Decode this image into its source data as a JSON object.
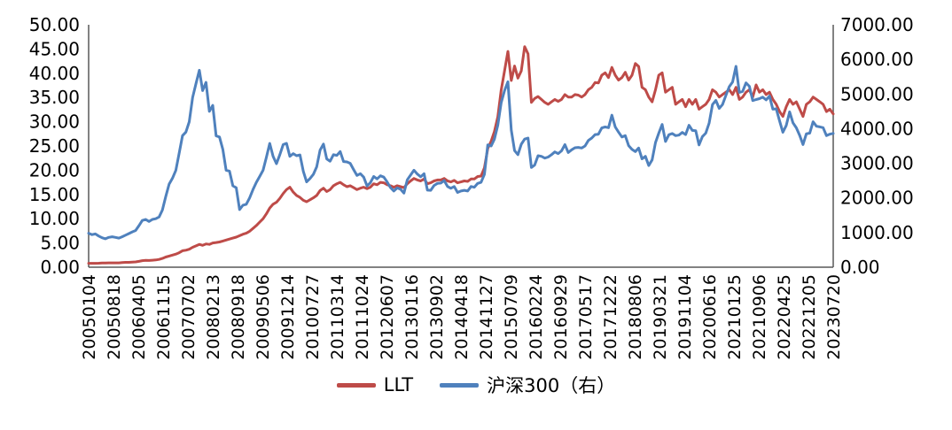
{
  "chart_data": {
    "type": "line",
    "title": "",
    "grid": false,
    "legend_position": "bottom",
    "axis_color": "#595959",
    "x_frequency": "monthly",
    "x_start": "2005-01",
    "x_end": "2023-07",
    "x_tick_labels": [
      "20050104",
      "20050818",
      "20060405",
      "20061115",
      "20070702",
      "20080213",
      "20080918",
      "20090506",
      "20091214",
      "20100727",
      "20110314",
      "20111024",
      "20120607",
      "20130116",
      "20130902",
      "20140418",
      "20141127",
      "20150709",
      "20160224",
      "20160929",
      "20170517",
      "20171222",
      "20180806",
      "20190321",
      "20191104",
      "20200616",
      "20210125",
      "20210906",
      "20220425",
      "20221205",
      "20230720"
    ],
    "left_axis": {
      "min": 0,
      "max": 50,
      "step": 5,
      "tick_labels": [
        "0.00",
        "5.00",
        "10.00",
        "15.00",
        "20.00",
        "25.00",
        "30.00",
        "35.00",
        "40.00",
        "45.00",
        "50.00"
      ]
    },
    "right_axis": {
      "min": 0,
      "max": 7000,
      "step": 1000,
      "tick_labels": [
        "0.00",
        "1000.00",
        "2000.00",
        "3000.00",
        "4000.00",
        "5000.00",
        "6000.00",
        "7000.00"
      ]
    },
    "series": [
      {
        "name": "LLT",
        "axis": "left",
        "color": "#be4b48",
        "values": [
          0.8,
          0.8,
          0.8,
          0.82,
          0.85,
          0.85,
          0.9,
          0.9,
          0.9,
          0.9,
          0.95,
          1.0,
          1.0,
          1.05,
          1.1,
          1.2,
          1.35,
          1.4,
          1.38,
          1.45,
          1.5,
          1.6,
          1.8,
          2.1,
          2.3,
          2.5,
          2.7,
          3.0,
          3.4,
          3.5,
          3.7,
          4.1,
          4.4,
          4.7,
          4.5,
          4.8,
          4.7,
          5.0,
          5.1,
          5.2,
          5.4,
          5.6,
          5.8,
          6.0,
          6.2,
          6.5,
          6.8,
          7.0,
          7.4,
          8.0,
          8.6,
          9.3,
          10.0,
          11.0,
          12.2,
          13.0,
          13.4,
          14.2,
          15.2,
          16.0,
          16.5,
          15.5,
          14.8,
          14.4,
          13.8,
          13.5,
          13.9,
          14.3,
          14.8,
          15.8,
          16.3,
          15.6,
          16.0,
          16.8,
          17.2,
          17.5,
          17.0,
          16.6,
          16.8,
          16.4,
          16.0,
          16.3,
          16.5,
          16.2,
          16.5,
          17.2,
          17.0,
          17.5,
          17.4,
          17.0,
          16.8,
          16.5,
          16.8,
          16.6,
          16.4,
          17.2,
          17.8,
          18.3,
          18.0,
          17.8,
          18.2,
          17.2,
          17.4,
          17.8,
          18.0,
          18.0,
          18.3,
          17.8,
          17.6,
          17.9,
          17.4,
          17.6,
          17.8,
          17.7,
          18.2,
          18.2,
          18.7,
          18.8,
          20.5,
          24.5,
          26.0,
          28.0,
          31.0,
          36.5,
          40.5,
          44.5,
          38.5,
          41.5,
          39.0,
          40.5,
          45.5,
          44.0,
          34.0,
          34.8,
          35.2,
          34.6,
          34.0,
          33.6,
          34.1,
          34.6,
          34.2,
          34.6,
          35.6,
          35.1,
          35.1,
          35.6,
          35.5,
          35.1,
          35.6,
          36.6,
          37.1,
          38.1,
          38.0,
          39.6,
          40.1,
          39.1,
          41.2,
          39.6,
          38.6,
          39.1,
          40.2,
          38.6,
          39.6,
          42.0,
          41.4,
          37.1,
          36.6,
          35.1,
          34.1,
          36.6,
          39.6,
          40.1,
          36.1,
          36.6,
          37.1,
          33.6,
          34.1,
          34.6,
          33.1,
          34.6,
          33.6,
          34.6,
          32.6,
          33.1,
          33.6,
          34.6,
          36.6,
          36.1,
          35.1,
          35.6,
          36.1,
          36.6,
          35.6,
          37.1,
          34.6,
          35.1,
          36.1,
          36.6,
          35.1,
          37.6,
          36.1,
          36.6,
          35.6,
          36.1,
          34.6,
          33.6,
          32.1,
          31.1,
          33.1,
          34.6,
          33.6,
          34.1,
          32.6,
          31.1,
          33.6,
          34.1,
          35.1,
          34.6,
          34.1,
          33.6,
          32.1,
          32.6,
          31.6
        ]
      },
      {
        "name": "沪深300（右）",
        "axis": "right",
        "color": "#4f81bd",
        "values": [
          982,
          940,
          960,
          900,
          850,
          820,
          860,
          880,
          860,
          840,
          880,
          924,
          970,
          1020,
          1060,
          1200,
          1350,
          1380,
          1320,
          1380,
          1400,
          1450,
          1650,
          2041,
          2400,
          2570,
          2800,
          3300,
          3800,
          3900,
          4200,
          4900,
          5300,
          5688,
          5100,
          5338,
          4500,
          4672,
          3790,
          3761,
          3400,
          2800,
          2775,
          2350,
          2294,
          1663,
          1790,
          1817,
          2000,
          2240,
          2450,
          2620,
          2800,
          3170,
          3573,
          3200,
          2990,
          3250,
          3540,
          3576,
          3200,
          3280,
          3220,
          3242,
          2768,
          2462,
          2560,
          2680,
          2900,
          3380,
          3557,
          3128,
          3060,
          3250,
          3230,
          3340,
          3050,
          3040,
          3000,
          2820,
          2650,
          2700,
          2600,
          2346,
          2440,
          2620,
          2550,
          2640,
          2600,
          2460,
          2300,
          2200,
          2290,
          2250,
          2140,
          2523,
          2660,
          2800,
          2690,
          2610,
          2700,
          2224,
          2220,
          2360,
          2420,
          2430,
          2500,
          2331,
          2280,
          2330,
          2160,
          2200,
          2220,
          2200,
          2330,
          2310,
          2420,
          2450,
          2680,
          3534,
          3500,
          3700,
          4100,
          4750,
          5100,
          5354,
          3960,
          3366,
          3250,
          3550,
          3700,
          3731,
          2880,
          2950,
          3220,
          3200,
          3150,
          3180,
          3250,
          3330,
          3280,
          3360,
          3540,
          3310,
          3390,
          3450,
          3460,
          3440,
          3500,
          3660,
          3730,
          3830,
          3840,
          4020,
          4050,
          4030,
          4389,
          4050,
          3900,
          3760,
          3800,
          3510,
          3400,
          3340,
          3440,
          3130,
          3200,
          2935,
          3100,
          3600,
          3870,
          4120,
          3630,
          3825,
          3860,
          3800,
          3815,
          3890,
          3830,
          4097,
          3950,
          3940,
          3530,
          3770,
          3870,
          4160,
          4695,
          4816,
          4587,
          4695,
          4960,
          5211,
          5350,
          5800,
          5048,
          5077,
          5321,
          5224,
          4811,
          4841,
          4866,
          4909,
          4832,
          4940,
          4564,
          4573,
          4223,
          3895,
          4092,
          4485,
          4170,
          4023,
          3805,
          3541,
          3853,
          3871,
          4201,
          4069,
          4051,
          4029,
          3800,
          3842,
          3862
        ]
      }
    ]
  }
}
